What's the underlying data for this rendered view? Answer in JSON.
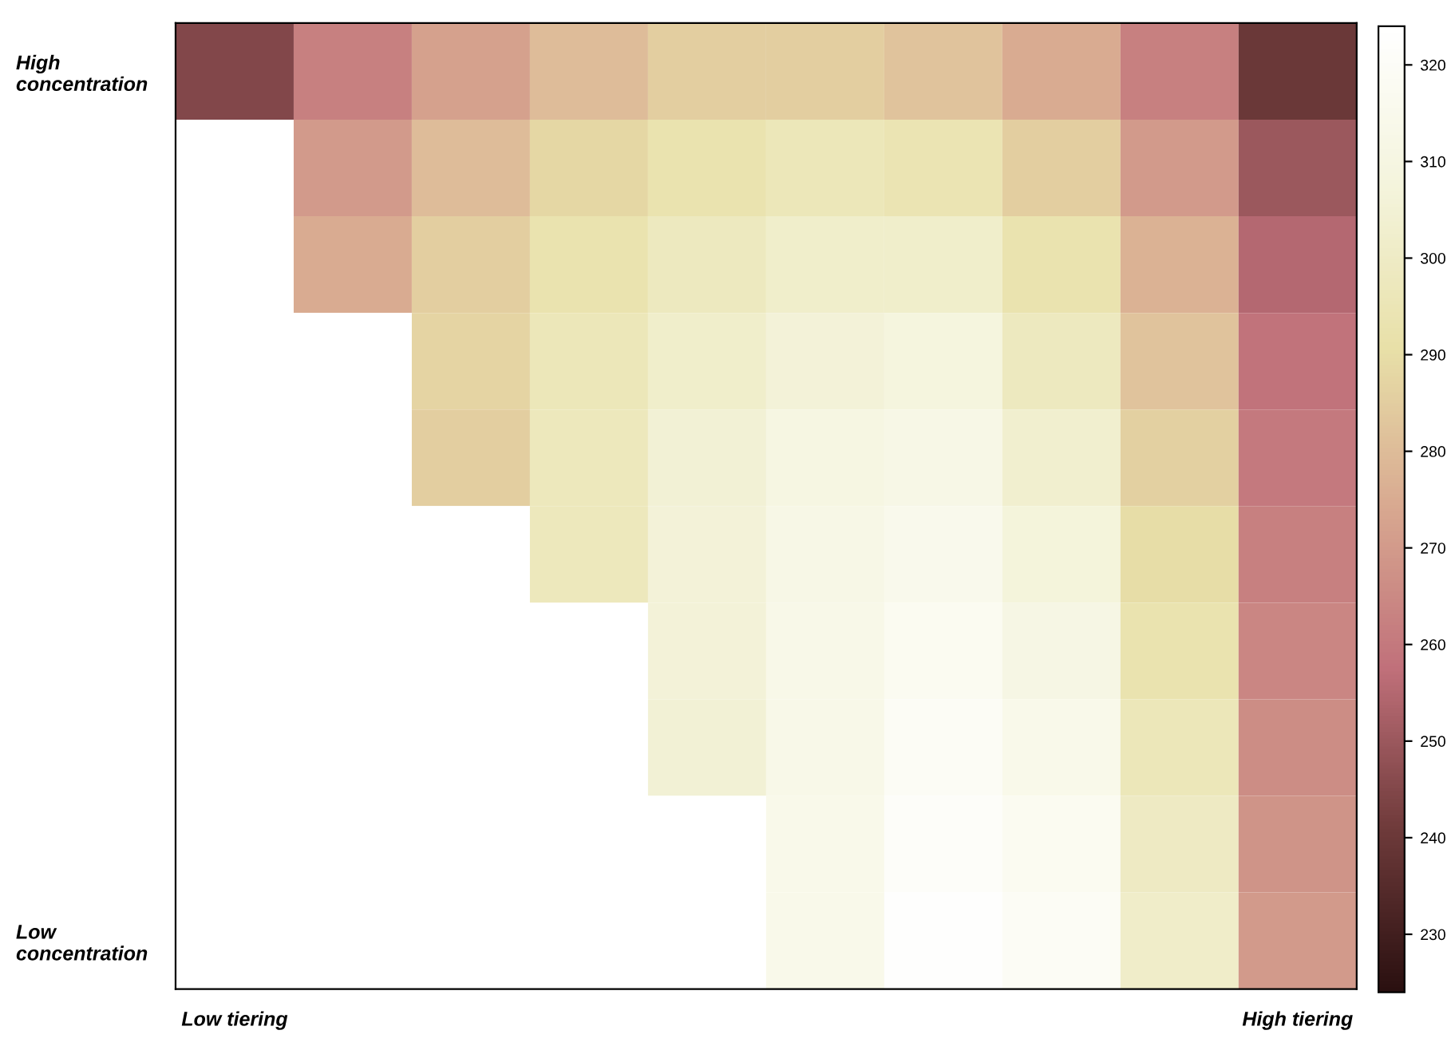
{
  "chart_data": {
    "type": "heatmap",
    "categories": [
      "Low tiering",
      null,
      null,
      null,
      null,
      null,
      null,
      null,
      null,
      "High tiering"
    ],
    "y_categories": [
      "High concentration",
      null,
      null,
      null,
      null,
      null,
      null,
      null,
      null,
      "Low concentration"
    ],
    "cells": [
      [
        245,
        262,
        272,
        280,
        285,
        285,
        282,
        275,
        262,
        240
      ],
      [
        null,
        270,
        280,
        288,
        293,
        296,
        294,
        285,
        270,
        250
      ],
      [
        null,
        275,
        285,
        293,
        298,
        302,
        302,
        293,
        277,
        255
      ],
      [
        null,
        null,
        287,
        296,
        302,
        306,
        308,
        298,
        282,
        258
      ],
      [
        null,
        null,
        285,
        297,
        305,
        310,
        312,
        303,
        286,
        260
      ],
      [
        null,
        null,
        null,
        297,
        306,
        312,
        315,
        307,
        290,
        262
      ],
      [
        null,
        null,
        null,
        null,
        306,
        313,
        317,
        311,
        293,
        264
      ],
      [
        null,
        null,
        null,
        null,
        305,
        313,
        319,
        314,
        296,
        266
      ],
      [
        null,
        null,
        null,
        null,
        null,
        314,
        321,
        317,
        299,
        268
      ],
      [
        null,
        null,
        null,
        null,
        null,
        314,
        323,
        319,
        301,
        270
      ]
    ],
    "clim": [
      224,
      324
    ],
    "cticks": [
      230,
      240,
      250,
      260,
      270,
      280,
      290,
      300,
      310,
      320
    ]
  }
}
